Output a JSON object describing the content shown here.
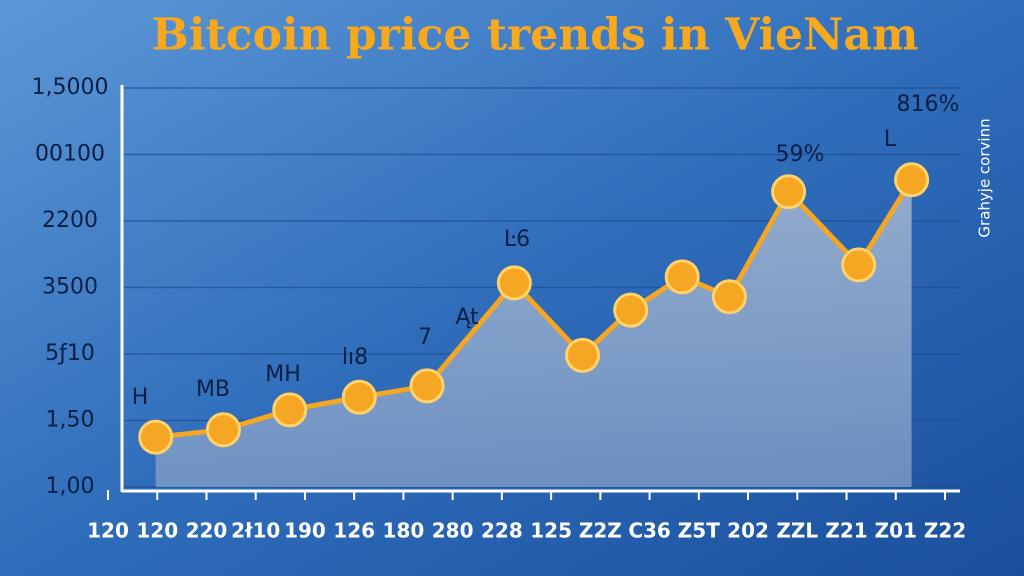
{
  "chart_data": {
    "type": "line",
    "title": "Bitcoin price trends in VieNam",
    "side_label": "Grahyje corvinn",
    "ylim": [
      0,
      6
    ],
    "yticks": [
      {
        "value": 0,
        "label": "1,00"
      },
      {
        "value": 1,
        "label": "1,50"
      },
      {
        "value": 2,
        "label": "5ƒ10"
      },
      {
        "value": 3,
        "label": "3500"
      },
      {
        "value": 4,
        "label": "2200"
      },
      {
        "value": 5,
        "label": "00100"
      },
      {
        "value": 6,
        "label": "1,5000"
      }
    ],
    "xlim": [
      -0.25,
      17.3
    ],
    "xticks": [
      {
        "value": 0,
        "label": "120"
      },
      {
        "value": 1,
        "label": "120"
      },
      {
        "value": 2,
        "label": "220"
      },
      {
        "value": 3,
        "label": "2ł10"
      },
      {
        "value": 4,
        "label": "190"
      },
      {
        "value": 5,
        "label": "126"
      },
      {
        "value": 6,
        "label": "180"
      },
      {
        "value": 7,
        "label": "280"
      },
      {
        "value": 8,
        "label": "228"
      },
      {
        "value": 9,
        "label": "125"
      },
      {
        "value": 10,
        "label": "Z2Z"
      },
      {
        "value": 11,
        "label": "C36"
      },
      {
        "value": 12,
        "label": "Z5T"
      },
      {
        "value": 13,
        "label": "202"
      },
      {
        "value": 14,
        "label": "ZZL"
      },
      {
        "value": 15,
        "label": "Z21"
      },
      {
        "value": 16,
        "label": "Z01"
      },
      {
        "value": 17,
        "label": "Z22"
      }
    ],
    "grid": true,
    "series": [
      {
        "color": "#f5a623",
        "x": [
          0.75,
          2.17,
          3.56,
          5.02,
          6.44,
          8.27,
          9.7,
          10.71,
          11.79,
          12.78,
          14.02,
          15.49,
          16.6
        ],
        "values": [
          0.75,
          0.86,
          1.16,
          1.35,
          1.52,
          3.07,
          1.98,
          2.66,
          3.16,
          2.86,
          4.44,
          3.34,
          4.62
        ]
      }
    ],
    "annotations": [
      "H",
      "MB",
      "MH",
      "lı8",
      "7",
      "Ąt",
      "Ŀ6",
      "59%",
      "816%",
      "L"
    ]
  }
}
